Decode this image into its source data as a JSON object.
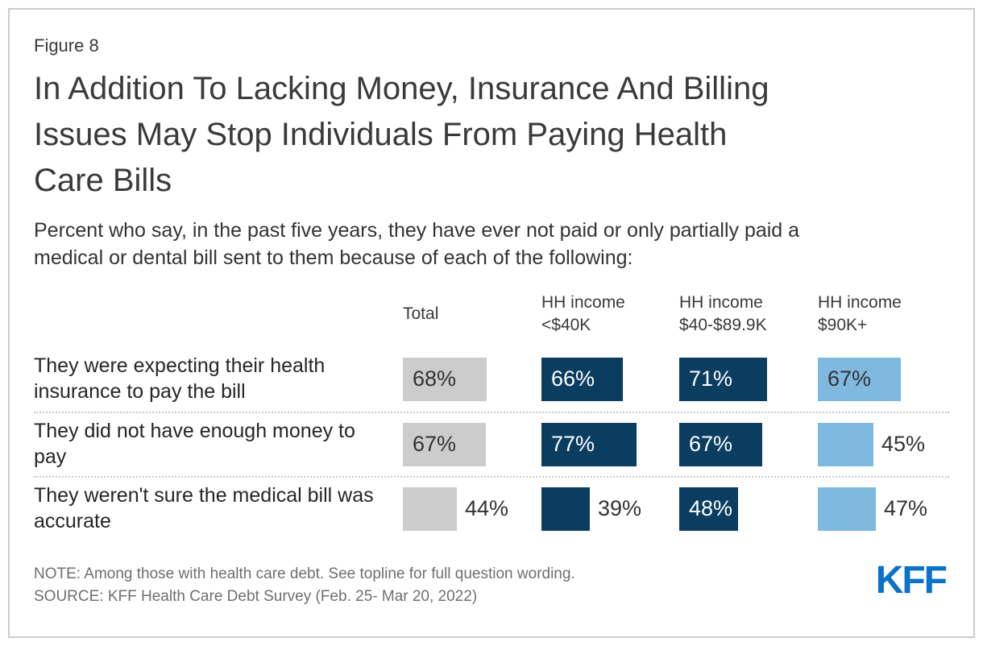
{
  "figure_label": "Figure 8",
  "title_lines": [
    "In Addition To Lacking Money, Insurance And Billing",
    "Issues May Stop Individuals From Paying Health",
    "Care Bills"
  ],
  "subtitle_lines": [
    "Percent who say, in the past five years, they have ever not paid or only partially paid a",
    "medical or dental bill sent to them because of each of the following:"
  ],
  "category_lines": [
    [
      "They were expecting their health",
      "insurance to pay the bill"
    ],
    [
      "They did not have enough money to",
      "pay"
    ],
    [
      "They weren't sure the medical bill was",
      "accurate"
    ]
  ],
  "chart_data": {
    "type": "bar",
    "orientation": "horizontal",
    "title": "In Addition To Lacking Money, Insurance And Billing Issues May Stop Individuals From Paying Health Care Bills",
    "subtitle": "Percent who say, in the past five years, they have ever not paid or only partially paid a medical or dental bill sent to them because of each of the following:",
    "unit": "%",
    "xlim": [
      0,
      100
    ],
    "value_labels_shown": true,
    "legend_position": "column-headers",
    "categories": [
      "They were expecting their health insurance to pay the bill",
      "They did not have enough money to pay",
      "They weren't sure the medical bill was accurate"
    ],
    "series": [
      {
        "name": "Total",
        "color": "#cccccc",
        "value_color_inside": "#333333",
        "values": [
          68,
          67,
          44
        ]
      },
      {
        "name": "HH income <$40K",
        "color": "#0b3d61",
        "value_color_inside": "#ffffff",
        "values": [
          66,
          77,
          39
        ]
      },
      {
        "name": "HH income $40-$89.9K",
        "color": "#0b3d61",
        "value_color_inside": "#ffffff",
        "values": [
          71,
          67,
          48
        ]
      },
      {
        "name": "HH income $90K+",
        "color": "#7fb9e0",
        "value_color_inside": "#333333",
        "values": [
          67,
          45,
          47
        ]
      }
    ]
  },
  "note": "NOTE: Among those with health care debt. See topline for full question wording.",
  "source": "SOURCE: KFF Health Care Debt Survey (Feb. 25- Mar 20, 2022)",
  "logo_text": "KFF",
  "colors": {
    "bar_gray": "#cccccc",
    "bar_navy": "#0b3d61",
    "bar_light_blue": "#7fb9e0",
    "kff_blue": "#0a72c8",
    "text_dark": "#3a3a3a",
    "text_muted": "#6f6f6f",
    "separator": "#c9c9c9",
    "card_border": "#cccccc"
  }
}
